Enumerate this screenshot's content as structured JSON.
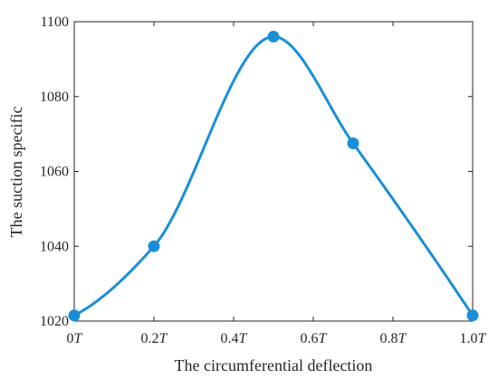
{
  "chart_data": {
    "type": "line",
    "xlabel": "The circumferential deflection",
    "ylabel": "The suction specific",
    "x_ticks": [
      {
        "value": 0.0,
        "num": "0",
        "sym": "T"
      },
      {
        "value": 0.2,
        "num": "0.2",
        "sym": "T"
      },
      {
        "value": 0.4,
        "num": "0.4",
        "sym": "T"
      },
      {
        "value": 0.6,
        "num": "0.6",
        "sym": "T"
      },
      {
        "value": 0.8,
        "num": "0.8",
        "sym": "T"
      },
      {
        "value": 1.0,
        "num": "1.0",
        "sym": "T"
      }
    ],
    "y_ticks": [
      {
        "value": 1020,
        "label": "1020"
      },
      {
        "value": 1040,
        "label": "1040"
      },
      {
        "value": 1060,
        "label": "1060"
      },
      {
        "value": 1080,
        "label": "1080"
      },
      {
        "value": 1100,
        "label": "1100"
      }
    ],
    "xlim": [
      0,
      1.0
    ],
    "ylim": [
      1020,
      1100
    ],
    "grid": false,
    "series": [
      {
        "color": "#1a8fd6",
        "x": [
          0.0,
          0.2,
          0.5,
          0.7,
          1.0
        ],
        "y": [
          1021.5,
          1040,
          1096,
          1067.5,
          1021.5
        ]
      }
    ]
  }
}
